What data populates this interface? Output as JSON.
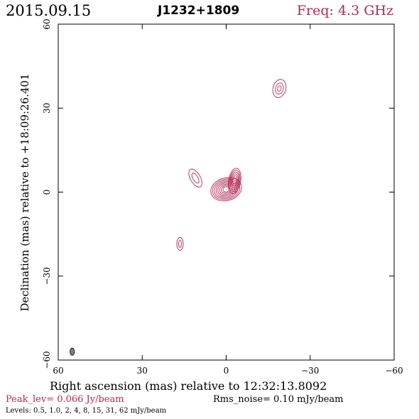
{
  "header": {
    "date": "2015.09.15",
    "source": "J1232+1809",
    "frequency": "Freq: 4.3 GHz"
  },
  "footer": {
    "peak": "Peak_lev=  0.066 Jy/beam",
    "noise": "Rms_noise= 0.10 mJy/beam",
    "levels": "Levels: 0.5, 1.0,    2,    4,    8,   15,   31,   62 mJy/beam"
  },
  "colors": {
    "contour": "#b22a55",
    "beam": "#808080"
  },
  "chart_data": {
    "type": "contour",
    "xlabel": "Right ascension (mas) relative to 12:32:13.8092",
    "ylabel": "Declination (mas) relative to +18:09:26.401",
    "xlim": [
      60,
      -60
    ],
    "ylim": [
      -60,
      60
    ],
    "x_ticks": [
      "60",
      "30",
      "0",
      "−30",
      "−60"
    ],
    "y_ticks": [
      "−60",
      "−30",
      "0",
      "30",
      "60"
    ],
    "contour_levels_mJy": [
      0.5,
      1.0,
      2,
      4,
      8,
      15,
      31,
      62
    ],
    "components": [
      {
        "x": 0,
        "y": 1,
        "peak_mJy": 66
      },
      {
        "x": -19,
        "y": 37,
        "peak_mJy": 2
      },
      {
        "x": 11,
        "y": 5,
        "peak_mJy": 1
      },
      {
        "x": 16.5,
        "y": -18.5,
        "peak_mJy": 1
      }
    ],
    "beam": {
      "x": 55,
      "y": -57,
      "major_mas": 2.6,
      "minor_mas": 1.6,
      "pa_deg": 0
    }
  }
}
